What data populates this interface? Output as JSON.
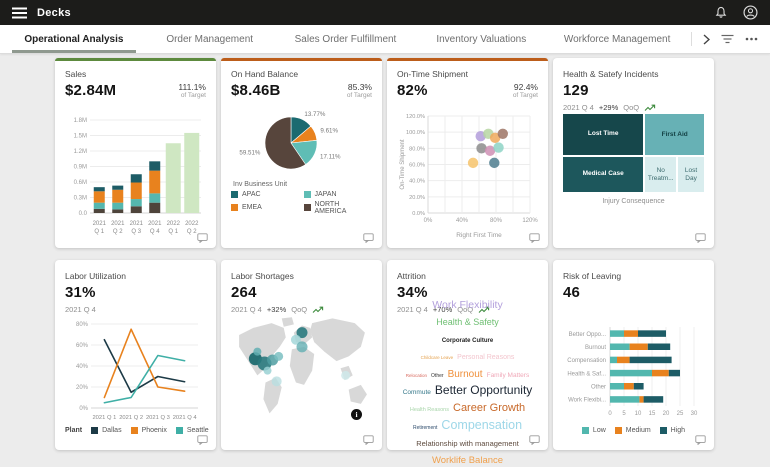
{
  "header": {
    "title": "Decks",
    "menu_icon": "hamburger-menu",
    "notifications_icon": "bell",
    "account_icon": "user-avatar"
  },
  "tabbar": {
    "tabs": [
      "Operational Analysis",
      "Order Management",
      "Sales Order Fulfillment",
      "Inventory Valuations",
      "Workforce Management"
    ],
    "active_tab": "Operational Analysis",
    "control_icons": [
      "chevron-right",
      "filter",
      "ellipsis"
    ]
  },
  "cards": [
    {
      "title": "Sales",
      "value": "$2.84M",
      "target_pct": "111.1%",
      "target_label": "of Target",
      "accent_color": "#5d8a3e",
      "chart": {
        "type": "stacked-column",
        "yticks": [
          "0.0",
          "0.3M",
          "0.6M",
          "0.9M",
          "1.2M",
          "1.5M",
          "1.8M"
        ],
        "ymax": 1.8,
        "categories": [
          "2021 Q 1",
          "2021 Q 2",
          "2021 Q 3",
          "2021 Q 4",
          "2022 Q 1",
          "2022 Q 2"
        ],
        "series": [
          {
            "color": "#4e443b",
            "values": [
              0.08,
              0.07,
              0.13,
              0.2,
              0,
              0
            ]
          },
          {
            "color": "#55b7ae",
            "values": [
              0.12,
              0.13,
              0.14,
              0.18,
              0,
              0
            ]
          },
          {
            "color": "#e8821e",
            "values": [
              0.22,
              0.25,
              0.32,
              0.44,
              0,
              0
            ]
          },
          {
            "color": "#1d5c66",
            "values": [
              0.08,
              0.08,
              0.16,
              0.18,
              0,
              0
            ]
          }
        ],
        "forecast": {
          "color": "#cfe7c2",
          "values": [
            0,
            0,
            0,
            0,
            1.35,
            1.55
          ]
        }
      }
    },
    {
      "title": "On Hand Balance",
      "value": "$8.46B",
      "target_pct": "85.3%",
      "target_label": "of Target",
      "accent_color": "#bc5d1a",
      "chart": {
        "type": "pie",
        "legend_title": "Inv Business Unit",
        "slices": [
          {
            "label": "APAC",
            "pct": 13.77,
            "color": "#1b6a70"
          },
          {
            "label": "EMEA",
            "pct": 9.61,
            "color": "#e8821e"
          },
          {
            "label": "JAPAN",
            "pct": 17.11,
            "color": "#5fbdb5"
          },
          {
            "label": "NORTH AMERICA",
            "pct": 59.51,
            "color": "#57453c"
          }
        ],
        "legend_order": [
          "APAC",
          "JAPAN",
          "EMEA",
          "NORTH AMERICA"
        ]
      }
    },
    {
      "title": "On-Time Shipment",
      "value": "82%",
      "target_pct": "92.4%",
      "target_label": "of Target",
      "accent_color": "#bc5d1a",
      "chart": {
        "type": "scatter",
        "xlabel": "Right First Time",
        "ylabel": "On-Time Shipment",
        "xticks": [
          "0%",
          "40%",
          "80%",
          "120%"
        ],
        "yticks": [
          "0.0%",
          "20.0%",
          "40.0%",
          "60.0%",
          "80.0%",
          "100.0%",
          "120.0%"
        ],
        "xmax": 120,
        "ymax": 120,
        "points": [
          {
            "x": 62,
            "y": 95,
            "color": "#b39ddb"
          },
          {
            "x": 71,
            "y": 98,
            "color": "#b7d6a3"
          },
          {
            "x": 79,
            "y": 93,
            "color": "#f0a95c"
          },
          {
            "x": 88,
            "y": 98,
            "color": "#9d7465"
          },
          {
            "x": 63,
            "y": 80,
            "color": "#8c8c8c"
          },
          {
            "x": 73,
            "y": 77,
            "color": "#cf8fb4"
          },
          {
            "x": 83,
            "y": 81,
            "color": "#8ed3c6"
          },
          {
            "x": 53,
            "y": 62,
            "color": "#f6c36b"
          },
          {
            "x": 78,
            "y": 62,
            "color": "#4e7d8e"
          }
        ]
      }
    },
    {
      "title": "Health & Satefy Incidents",
      "value": "129",
      "period": "2021 Q 4",
      "delta": "+29%",
      "delta_label": "QoQ",
      "chart": {
        "type": "treemap",
        "axis_label": "Injury Consequence",
        "tiles": [
          {
            "label": "Lost Time",
            "color": "#16474b",
            "text_color": "#ffffff"
          },
          {
            "label": "Medical Case",
            "color": "#1d575c",
            "text_color": "#ffffff"
          },
          {
            "label": "First Aid",
            "color": "#67b1b5",
            "text_color": "#123f42"
          },
          {
            "label": "No Treatm...",
            "color": "#d9edee",
            "text_color": "#3c6b6e"
          },
          {
            "label": "Lost Day",
            "color": "#d9edee",
            "text_color": "#3c6b6e"
          }
        ]
      }
    },
    {
      "title": "Labor Utilization",
      "value": "31%",
      "period": "2021 Q 4",
      "chart": {
        "type": "line",
        "legend_title": "Plant",
        "categories": [
          "2021 Q 1",
          "2021 Q 2",
          "2021 Q 3",
          "2021 Q 4"
        ],
        "yticks": [
          "0%",
          "20%",
          "40%",
          "60%",
          "80%"
        ],
        "ymax": 80,
        "series": [
          {
            "name": "Dallas",
            "color": "#1c3a46",
            "values": [
              65,
              15,
              30,
              25
            ]
          },
          {
            "name": "Phoenix",
            "color": "#e8821e",
            "values": [
              10,
              75,
              20,
              16
            ]
          },
          {
            "name": "Seattle",
            "color": "#3fafa6",
            "values": [
              5,
              10,
              50,
              45
            ]
          }
        ]
      }
    },
    {
      "title": "Labor Shortages",
      "value": "264",
      "period": "2021 Q 4",
      "delta": "+32%",
      "delta_label": "QoQ",
      "chart": {
        "type": "map",
        "info_icon": "i",
        "bubbles": [
          {
            "x": 24,
            "y": 36,
            "r": 6.5,
            "color": "#1f6b70",
            "opacity": 0.95
          },
          {
            "x": 33,
            "y": 40,
            "r": 7,
            "color": "#2a7a7e",
            "opacity": 0.9
          },
          {
            "x": 41,
            "y": 37,
            "r": 5.5,
            "color": "#4f9da1",
            "opacity": 0.85
          },
          {
            "x": 47,
            "y": 34,
            "r": 4.5,
            "color": "#7bbfc2",
            "opacity": 0.85
          },
          {
            "x": 36,
            "y": 46,
            "r": 4,
            "color": "#9ad1d4",
            "opacity": 0.85
          },
          {
            "x": 45,
            "y": 55,
            "r": 5,
            "color": "#b9dfe1",
            "opacity": 0.8
          },
          {
            "x": 26,
            "y": 30,
            "r": 4,
            "color": "#63afb3",
            "opacity": 0.85
          },
          {
            "x": 70,
            "y": 14,
            "r": 5.5,
            "color": "#2a7a7e",
            "opacity": 0.9
          },
          {
            "x": 64,
            "y": 20,
            "r": 5,
            "color": "#a5d7d9",
            "opacity": 0.85
          },
          {
            "x": 70,
            "y": 26,
            "r": 5.5,
            "color": "#63afb3",
            "opacity": 0.8
          },
          {
            "x": 113,
            "y": 50,
            "r": 4.5,
            "color": "#cfe9ea",
            "opacity": 0.85
          }
        ]
      }
    },
    {
      "title": "Attrition",
      "value": "34%",
      "period": "2021 Q 4",
      "delta": "+70%",
      "delta_label": "QoQ",
      "chart": {
        "type": "wordcloud",
        "lines": [
          [
            {
              "t": "Work Flexibility",
              "c": "#b3a0dc",
              "s": 10.5
            }
          ],
          [
            {
              "t": "Health & Safety",
              "c": "#6fbf73",
              "s": 9
            }
          ],
          [
            {
              "t": "Corporate Culture",
              "c": "#1f1f1f",
              "s": 6,
              "b": true
            }
          ],
          [
            {
              "t": "Childcare Leave",
              "c": "#e5a24f",
              "s": 4.5
            },
            {
              "t": "Personal Reasons",
              "c": "#f3c6ce",
              "s": 7
            }
          ],
          [
            {
              "t": "Relocation",
              "c": "#d96a5f",
              "s": 4.5
            },
            {
              "t": "Other",
              "c": "#333333",
              "s": 5
            },
            {
              "t": "Burnout",
              "c": "#ef8f3a",
              "s": 10
            },
            {
              "t": "Family Matters",
              "c": "#f0a8b8",
              "s": 6.5
            }
          ],
          [
            {
              "t": "Commute",
              "c": "#35788a",
              "s": 6.5
            },
            {
              "t": "Better Opportunity",
              "c": "#1c2633",
              "s": 12
            }
          ],
          [
            {
              "t": "Health Reasons",
              "c": "#a8d5aa",
              "s": 5.5
            },
            {
              "t": "Career Growth",
              "c": "#c8692a",
              "s": 11
            }
          ],
          [
            {
              "t": "Retirement",
              "c": "#2c4a6b",
              "s": 5
            },
            {
              "t": "Compensation",
              "c": "#9ed7e8",
              "s": 12.5
            }
          ],
          [
            {
              "t": "Relationship with management",
              "c": "#5d4a3d",
              "s": 7.5
            }
          ],
          [
            {
              "t": "Worklife Balance",
              "c": "#f0a04c",
              "s": 9.5
            }
          ]
        ]
      }
    },
    {
      "title": "Risk of Leaving",
      "value": "46",
      "chart": {
        "type": "hbar",
        "categories": [
          "Better Oppo...",
          "Burnout",
          "Compensation",
          "Health & Saf...",
          "Other",
          "Work Flexibi..."
        ],
        "xticks": [
          "0",
          "5",
          "10",
          "15",
          "20",
          "25",
          "30"
        ],
        "xmax": 30,
        "series": [
          {
            "name": "Low",
            "color": "#52b7ae",
            "values": [
              5,
              7,
              2.5,
              15,
              5,
              10.5
            ]
          },
          {
            "name": "Medium",
            "color": "#e8821e",
            "values": [
              5,
              6.5,
              4.5,
              6,
              3.5,
              1.5
            ]
          },
          {
            "name": "High",
            "color": "#1d5c66",
            "values": [
              10,
              8,
              15,
              4,
              3.5,
              7
            ]
          }
        ]
      }
    }
  ]
}
